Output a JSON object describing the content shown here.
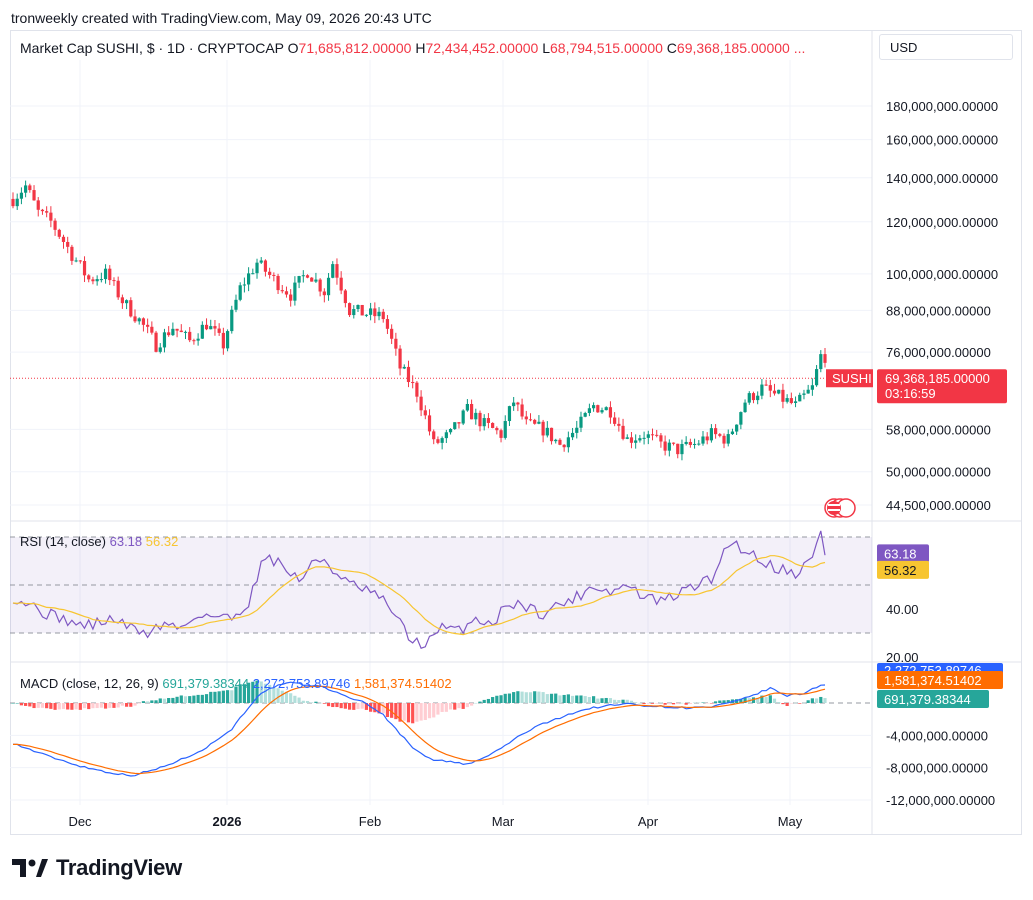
{
  "header": {
    "credit": "tronweekly created with TradingView.com, May 09, 2026 20:43 UTC"
  },
  "title": {
    "symbol": "Market Cap SUSHI, $ · 1D · CRYPTOCAP",
    "o_label": "O",
    "o_value": "71,685,812.00000",
    "h_label": "H",
    "h_value": "72,434,452.00000",
    "l_label": "L",
    "l_value": "68,794,515.00000",
    "c_label": "C",
    "c_value": "69,368,185.00000 ..."
  },
  "currency": "USD",
  "price_badge": {
    "symbol": "SUSHI",
    "value": "69,368,185.00000",
    "countdown": "03:16:59"
  },
  "rsi": {
    "label": "RSI (14, close)",
    "value": "63.18",
    "ma": "56.32",
    "levels": [
      70,
      50,
      30
    ]
  },
  "macd": {
    "label": "MACD (close, 12, 26, 9)",
    "hist": "691,379.38344",
    "macd": "2,272,753.89746",
    "signal": "1,581,374.51402"
  },
  "brand": "TradingView",
  "colors": {
    "up": "#089981",
    "down": "#f23645",
    "rsi": "#7e57c2",
    "rsi_ma": "#f7c531",
    "macd": "#2962ff",
    "signal": "#ff6d00"
  },
  "chart_data": {
    "type": "candlestick",
    "price_axis": {
      "ticks": [
        "180,000,000.00000",
        "160,000,000.00000",
        "140,000,000.00000",
        "120,000,000.00000",
        "100,000,000.00000",
        "88,000,000.00000",
        "76,000,000.00000",
        "58,000,000.00000",
        "50,000,000.00000",
        "44,500,000.00000"
      ]
    },
    "rsi_axis": {
      "ticks": [
        "40.00",
        "20.00"
      ]
    },
    "macd_axis": {
      "ticks": [
        "-4,000,000.00000",
        "-8,000,000.00000",
        "-12,000,000.00000"
      ]
    },
    "x_labels": [
      "Dec",
      "2026",
      "Feb",
      "Mar",
      "Apr",
      "May"
    ],
    "close_anchors": [
      [
        0,
        130
      ],
      [
        3,
        136
      ],
      [
        6,
        124
      ],
      [
        9,
        120
      ],
      [
        14,
        107
      ],
      [
        18,
        98
      ],
      [
        22,
        100
      ],
      [
        26,
        91
      ],
      [
        30,
        85
      ],
      [
        34,
        78
      ],
      [
        38,
        83
      ],
      [
        42,
        79
      ],
      [
        46,
        84
      ],
      [
        50,
        78
      ],
      [
        54,
        95
      ],
      [
        58,
        104
      ],
      [
        62,
        98
      ],
      [
        66,
        93
      ],
      [
        70,
        101
      ],
      [
        74,
        94
      ],
      [
        76,
        104
      ],
      [
        80,
        88
      ],
      [
        84,
        87
      ],
      [
        88,
        86
      ],
      [
        92,
        72
      ],
      [
        96,
        66
      ],
      [
        100,
        55
      ],
      [
        104,
        57
      ],
      [
        108,
        62
      ],
      [
        112,
        59
      ],
      [
        116,
        57
      ],
      [
        119,
        64
      ],
      [
        122,
        59
      ],
      [
        126,
        58
      ],
      [
        130,
        55
      ],
      [
        134,
        58
      ],
      [
        138,
        63
      ],
      [
        142,
        62
      ],
      [
        146,
        56
      ],
      [
        150,
        57
      ],
      [
        154,
        55
      ],
      [
        158,
        54
      ],
      [
        162,
        55
      ],
      [
        166,
        57
      ],
      [
        170,
        56
      ],
      [
        174,
        64
      ],
      [
        178,
        67
      ],
      [
        182,
        65
      ],
      [
        186,
        63
      ],
      [
        190,
        67
      ],
      [
        192,
        75
      ]
    ],
    "rsi_anchors": [
      [
        0,
        45
      ],
      [
        4,
        42
      ],
      [
        8,
        38
      ],
      [
        12,
        36
      ],
      [
        16,
        33
      ],
      [
        20,
        34
      ],
      [
        24,
        36
      ],
      [
        28,
        32
      ],
      [
        32,
        30
      ],
      [
        36,
        34
      ],
      [
        40,
        32
      ],
      [
        44,
        38
      ],
      [
        48,
        37
      ],
      [
        52,
        36
      ],
      [
        56,
        43
      ],
      [
        60,
        63
      ],
      [
        64,
        58
      ],
      [
        68,
        52
      ],
      [
        72,
        60
      ],
      [
        74,
        61
      ],
      [
        78,
        52
      ],
      [
        82,
        49
      ],
      [
        86,
        46
      ],
      [
        90,
        40
      ],
      [
        94,
        28
      ],
      [
        98,
        25
      ],
      [
        102,
        32
      ],
      [
        106,
        31
      ],
      [
        110,
        36
      ],
      [
        114,
        34
      ],
      [
        118,
        43
      ],
      [
        122,
        41
      ],
      [
        126,
        38
      ],
      [
        130,
        42
      ],
      [
        134,
        45
      ],
      [
        138,
        50
      ],
      [
        142,
        47
      ],
      [
        146,
        50
      ],
      [
        150,
        45
      ],
      [
        154,
        43
      ],
      [
        158,
        46
      ],
      [
        162,
        50
      ],
      [
        166,
        52
      ],
      [
        170,
        68
      ],
      [
        174,
        65
      ],
      [
        178,
        60
      ],
      [
        182,
        57
      ],
      [
        186,
        55
      ],
      [
        190,
        61
      ],
      [
        192,
        72
      ],
      [
        193,
        63.18
      ]
    ],
    "macd_anchors": [
      [
        0,
        -5.0
      ],
      [
        8,
        -6.5
      ],
      [
        16,
        -7.8
      ],
      [
        22,
        -8.5
      ],
      [
        28,
        -9.0
      ],
      [
        34,
        -8.2
      ],
      [
        40,
        -7.0
      ],
      [
        46,
        -5.5
      ],
      [
        52,
        -3.2
      ],
      [
        58,
        0.8
      ],
      [
        62,
        2.0
      ],
      [
        66,
        2.5
      ],
      [
        70,
        2.2
      ],
      [
        74,
        2.0
      ],
      [
        78,
        1.0
      ],
      [
        84,
        0.0
      ],
      [
        88,
        -1.5
      ],
      [
        92,
        -3.8
      ],
      [
        96,
        -6.0
      ],
      [
        100,
        -7.0
      ],
      [
        104,
        -7.3
      ],
      [
        108,
        -7.6
      ],
      [
        112,
        -6.8
      ],
      [
        116,
        -5.6
      ],
      [
        120,
        -4.2
      ],
      [
        124,
        -3.0
      ],
      [
        128,
        -2.2
      ],
      [
        132,
        -1.4
      ],
      [
        136,
        -0.8
      ],
      [
        140,
        -0.4
      ],
      [
        146,
        -0.1
      ],
      [
        150,
        -0.3
      ],
      [
        156,
        -0.5
      ],
      [
        160,
        -0.6
      ],
      [
        166,
        -0.5
      ],
      [
        172,
        0.2
      ],
      [
        176,
        1.0
      ],
      [
        180,
        1.8
      ],
      [
        184,
        0.9
      ],
      [
        188,
        1.2
      ],
      [
        192,
        2.27
      ]
    ]
  }
}
